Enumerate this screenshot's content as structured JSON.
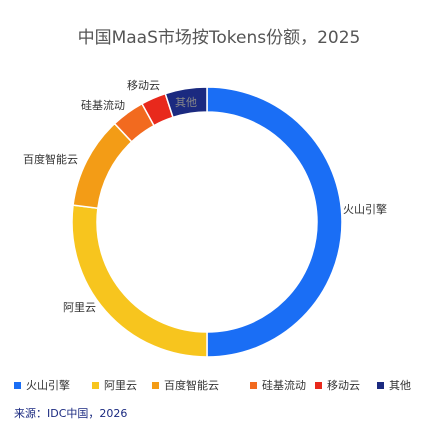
{
  "chart_data": {
    "type": "donut",
    "title": "中国MaaS市场按Tokens份额，2025",
    "categories": [
      "火山引擎",
      "阿里云",
      "百度智能云",
      "硅基流动",
      "移动云",
      "其他"
    ],
    "values": [
      50,
      27,
      11,
      4,
      3,
      5
    ],
    "colors": [
      "#1a6ef5",
      "#f7c51e",
      "#f39c16",
      "#f26a1f",
      "#e8291c",
      "#1b2a80"
    ],
    "source": "来源：IDC中国，2026"
  }
}
